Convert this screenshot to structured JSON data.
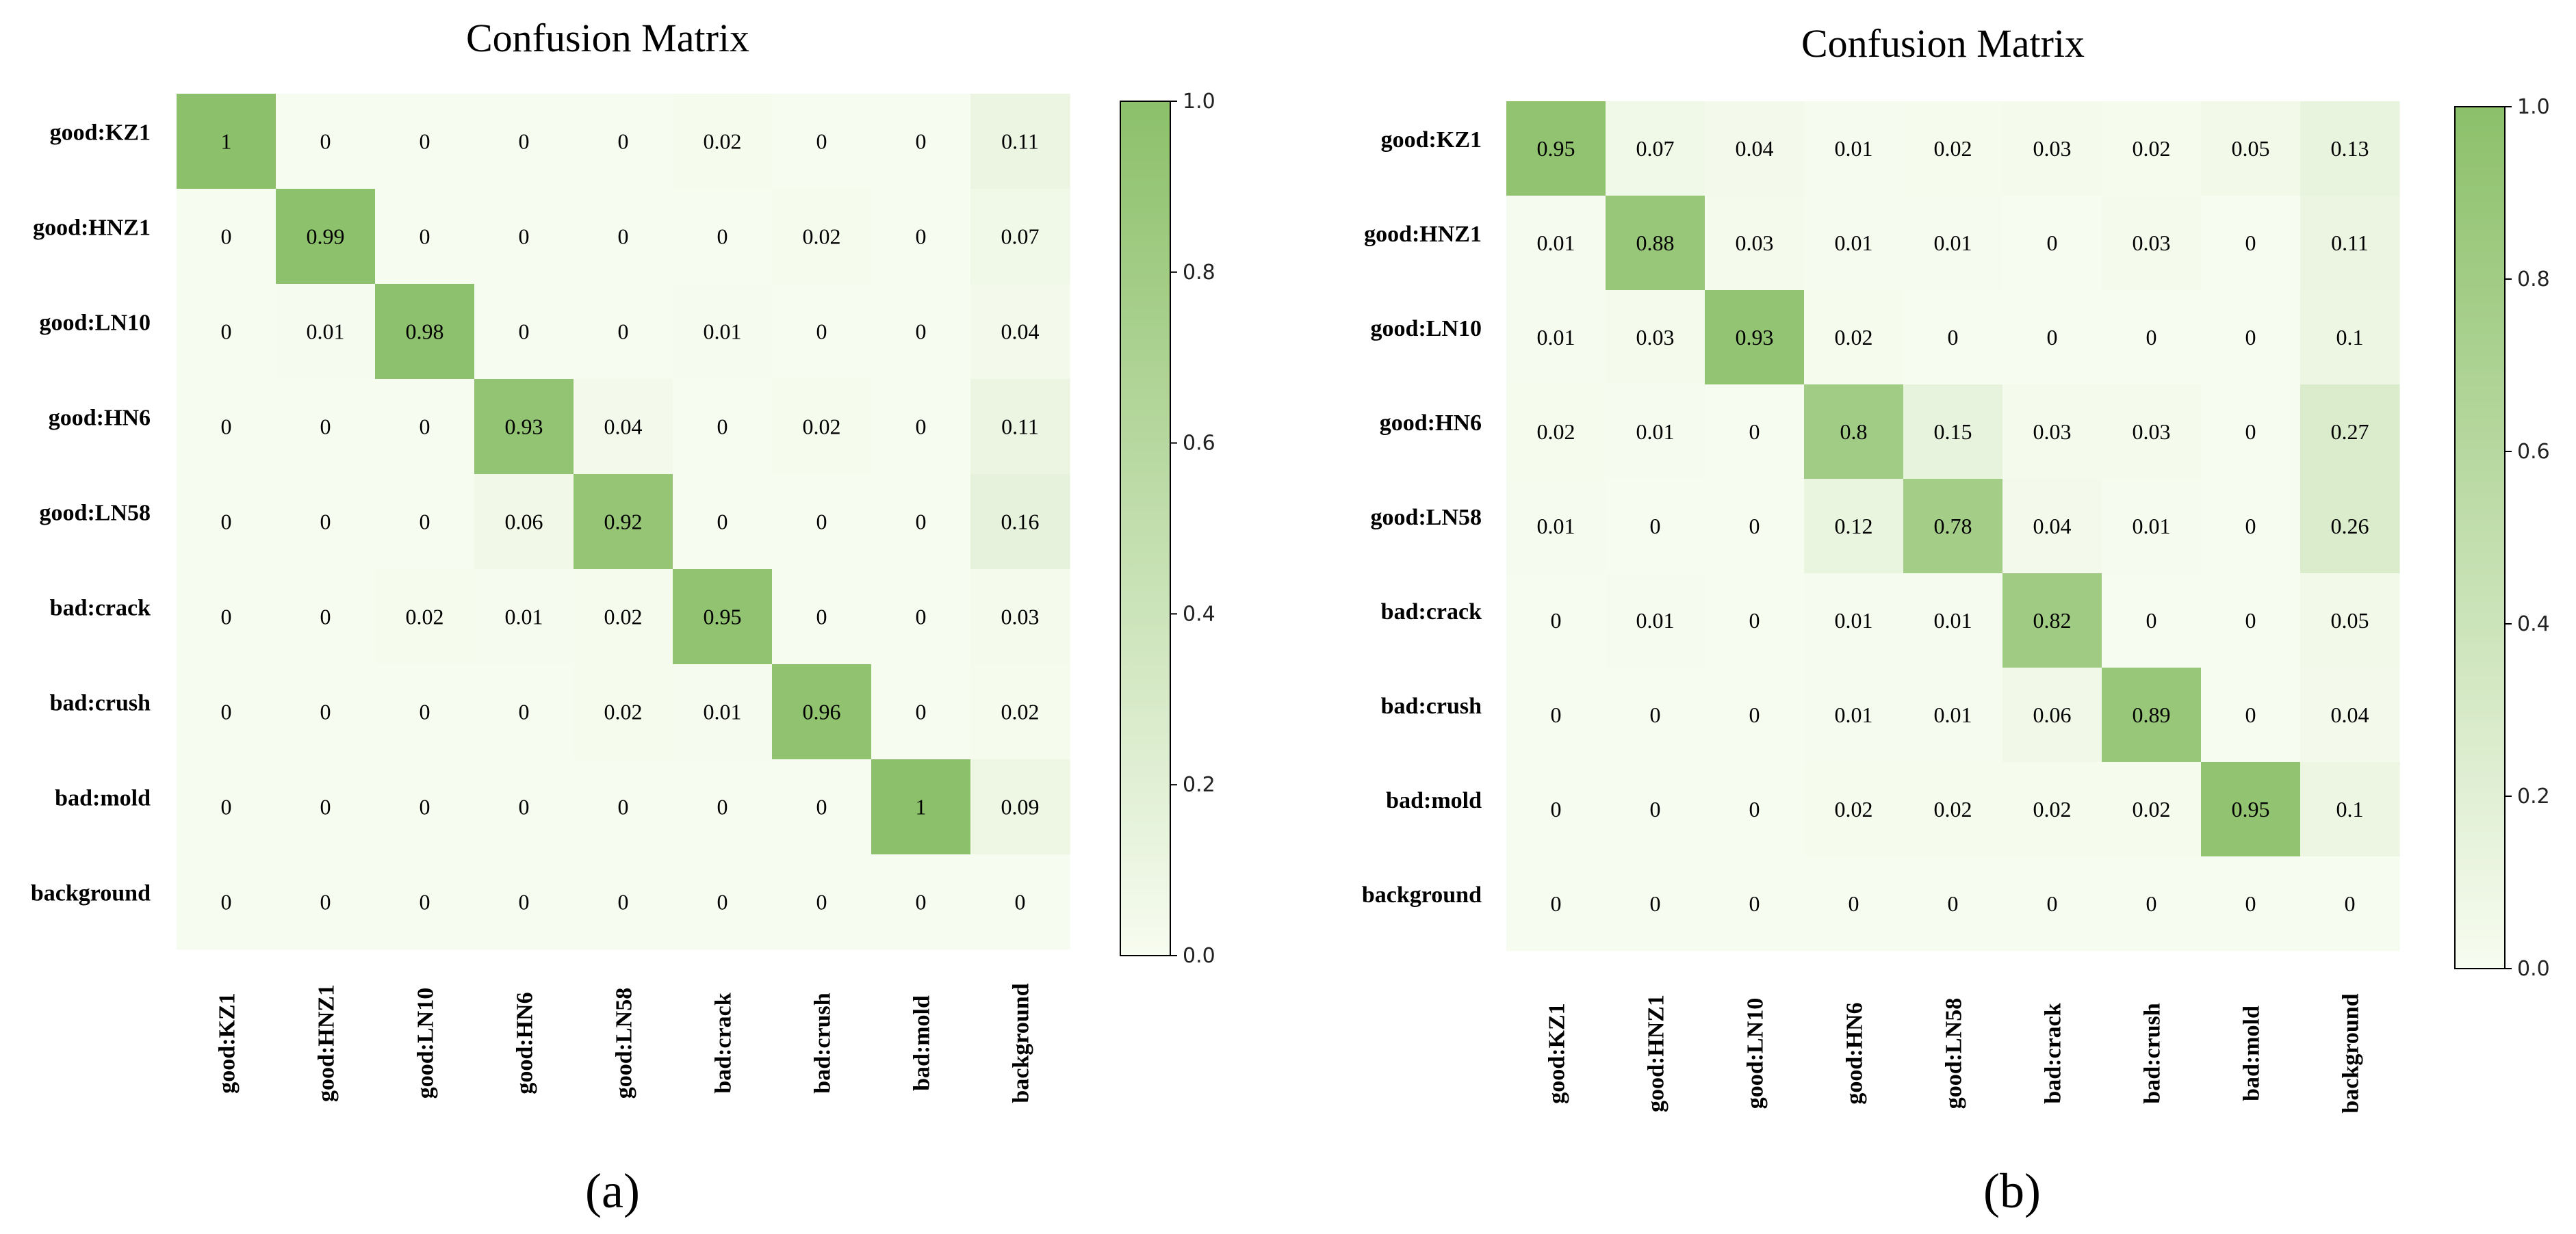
{
  "chart_data": [
    {
      "type": "heatmap",
      "title": "Confusion Matrix",
      "caption": "(a)",
      "row_labels": [
        "good:KZ1",
        "good:HNZ1",
        "good:LN10",
        "good:HN6",
        "good:LN58",
        "bad:crack",
        "bad:crush",
        "bad:mold",
        "background"
      ],
      "col_labels": [
        "good:KZ1",
        "good:HNZ1",
        "good:LN10",
        "good:HN6",
        "good:LN58",
        "bad:crack",
        "bad:crush",
        "bad:mold",
        "background"
      ],
      "values": [
        [
          "1",
          "0",
          "0",
          "0",
          "0",
          "0.02",
          "0",
          "0",
          "0.11"
        ],
        [
          "0",
          "0.99",
          "0",
          "0",
          "0",
          "0",
          "0.02",
          "0",
          "0.07"
        ],
        [
          "0",
          "0.01",
          "0.98",
          "0",
          "0",
          "0.01",
          "0",
          "0",
          "0.04"
        ],
        [
          "0",
          "0",
          "0",
          "0.93",
          "0.04",
          "0",
          "0.02",
          "0",
          "0.11"
        ],
        [
          "0",
          "0",
          "0",
          "0.06",
          "0.92",
          "0",
          "0",
          "0",
          "0.16"
        ],
        [
          "0",
          "0",
          "0.02",
          "0.01",
          "0.02",
          "0.95",
          "0",
          "0",
          "0.03"
        ],
        [
          "0",
          "0",
          "0",
          "0",
          "0.02",
          "0.01",
          "0.96",
          "0",
          "0.02"
        ],
        [
          "0",
          "0",
          "0",
          "0",
          "0",
          "0",
          "0",
          "1",
          "0.09"
        ],
        [
          "0",
          "0",
          "0",
          "0",
          "0",
          "0",
          "0",
          "0",
          "0"
        ]
      ],
      "colorbar": {
        "range": [
          0.0,
          1.0
        ],
        "ticks": [
          "0.0",
          "0.2",
          "0.4",
          "0.6",
          "0.8",
          "1.0"
        ]
      },
      "colors": {
        "low": "#f7fcf0",
        "high": "#8cc06a",
        "border": "#000000"
      }
    },
    {
      "type": "heatmap",
      "title": "Confusion Matrix",
      "caption": "(b)",
      "row_labels": [
        "good:KZ1",
        "good:HNZ1",
        "good:LN10",
        "good:HN6",
        "good:LN58",
        "bad:crack",
        "bad:crush",
        "bad:mold",
        "background"
      ],
      "col_labels": [
        "good:KZ1",
        "good:HNZ1",
        "good:LN10",
        "good:HN6",
        "good:LN58",
        "bad:crack",
        "bad:crush",
        "bad:mold",
        "background"
      ],
      "values": [
        [
          "0.95",
          "0.07",
          "0.04",
          "0.01",
          "0.02",
          "0.03",
          "0.02",
          "0.05",
          "0.13"
        ],
        [
          "0.01",
          "0.88",
          "0.03",
          "0.01",
          "0.01",
          "0",
          "0.03",
          "0",
          "0.11"
        ],
        [
          "0.01",
          "0.03",
          "0.93",
          "0.02",
          "0",
          "0",
          "0",
          "0",
          "0.1"
        ],
        [
          "0.02",
          "0.01",
          "0",
          "0.8",
          "0.15",
          "0.03",
          "0.03",
          "0",
          "0.27"
        ],
        [
          "0.01",
          "0",
          "0",
          "0.12",
          "0.78",
          "0.04",
          "0.01",
          "0",
          "0.26"
        ],
        [
          "0",
          "0.01",
          "0",
          "0.01",
          "0.01",
          "0.82",
          "0",
          "0",
          "0.05"
        ],
        [
          "0",
          "0",
          "0",
          "0.01",
          "0.01",
          "0.06",
          "0.89",
          "0",
          "0.04"
        ],
        [
          "0",
          "0",
          "0",
          "0.02",
          "0.02",
          "0.02",
          "0.02",
          "0.95",
          "0.1"
        ],
        [
          "0",
          "0",
          "0",
          "0",
          "0",
          "0",
          "0",
          "0",
          "0"
        ]
      ],
      "colorbar": {
        "range": [
          0.0,
          1.0
        ],
        "ticks": [
          "0.0",
          "0.2",
          "0.4",
          "0.6",
          "0.8",
          "1.0"
        ]
      },
      "colors": {
        "low": "#f7fcf0",
        "high": "#8cc06a",
        "border": "#000000"
      }
    }
  ]
}
